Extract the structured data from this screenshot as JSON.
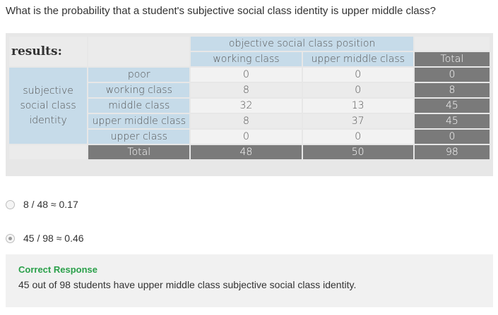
{
  "question": "What is the probability that a student's subjective social class identity is upper middle class?",
  "table": {
    "results_label": "results:",
    "col_group_header": "objective social class position",
    "col_headers": [
      "working class",
      "upper middle class"
    ],
    "total_header": "Total",
    "row_group_header": "subjective social class identity",
    "rows": [
      {
        "label": "poor",
        "values": [
          "0",
          "0"
        ],
        "total": "0"
      },
      {
        "label": "working class",
        "values": [
          "8",
          "0"
        ],
        "total": "8"
      },
      {
        "label": "middle class",
        "values": [
          "32",
          "13"
        ],
        "total": "45"
      },
      {
        "label": "upper middle class",
        "values": [
          "8",
          "37"
        ],
        "total": "45"
      },
      {
        "label": "upper class",
        "values": [
          "0",
          "0"
        ],
        "total": "0"
      }
    ],
    "total_row": {
      "label": "Total",
      "values": [
        "48",
        "50"
      ],
      "total": "98"
    }
  },
  "choices": [
    {
      "text": "8 / 48 ≈ 0.17",
      "selected": false
    },
    {
      "text": "45 / 98 ≈ 0.46",
      "selected": true
    }
  ],
  "feedback": {
    "title": "Correct Response",
    "text": "45 out of 98 students have upper middle class subjective social class identity."
  }
}
